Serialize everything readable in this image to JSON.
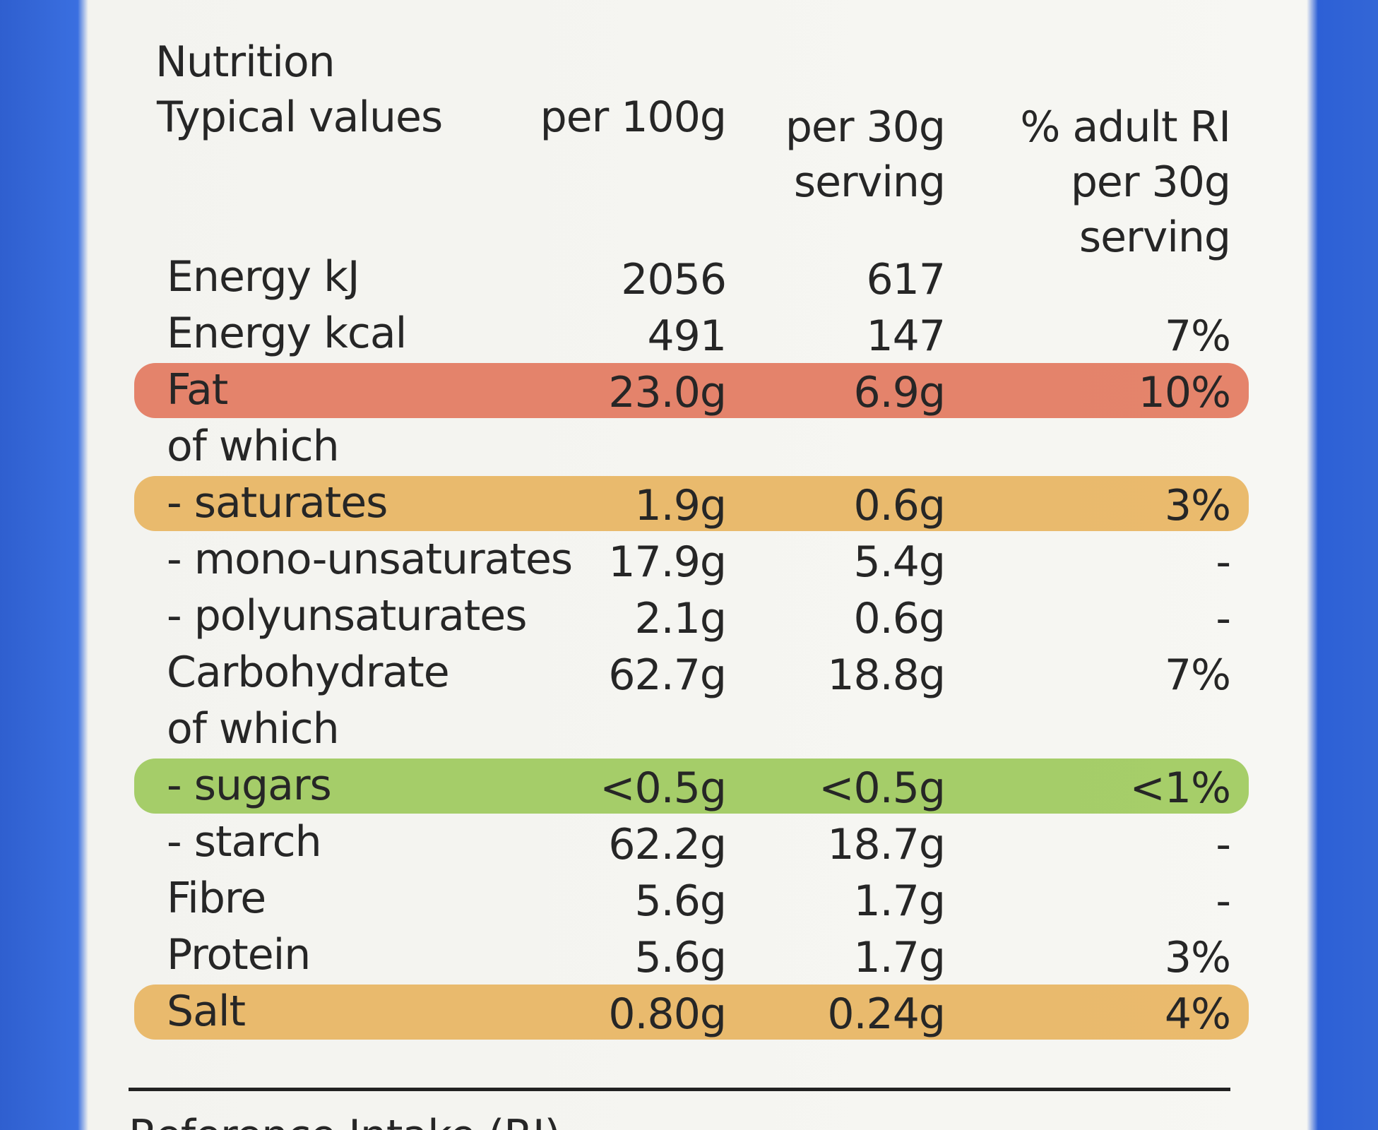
{
  "header": {
    "title": "Nutrition",
    "label": "Typical values",
    "columns": [
      [
        "per 100g"
      ],
      [
        "per 30g",
        "serving"
      ],
      [
        "% adult RI",
        "per 30g",
        "serving"
      ]
    ]
  },
  "table": {
    "rows": [
      {
        "cells": [
          "Energy kJ",
          "2056",
          "617",
          null
        ]
      },
      {
        "cells": [
          "Energy kcal",
          "491",
          "147",
          "7%"
        ]
      },
      {
        "cells": [
          "Fat",
          "23.0g",
          "6.9g",
          "10%"
        ],
        "highlight": "#e2775c"
      },
      {
        "cells": [
          "of which",
          null,
          null,
          null
        ]
      },
      {
        "cells": [
          "- saturates",
          "1.9g",
          "0.6g",
          "3%"
        ],
        "highlight": "#e8b45e"
      },
      {
        "cells": [
          "- mono-unsaturates",
          "17.9g",
          "5.4g",
          "-"
        ]
      },
      {
        "cells": [
          "- polyunsaturates",
          "2.1g",
          "0.6g",
          "-"
        ]
      },
      {
        "cells": [
          "Carbohydrate",
          "62.7g",
          "18.8g",
          "7%"
        ]
      },
      {
        "cells": [
          "of which",
          null,
          null,
          null
        ]
      },
      {
        "cells": [
          "- sugars",
          "<0.5g",
          "<0.5g",
          "<1%"
        ],
        "highlight": "#9cc95a"
      },
      {
        "cells": [
          "- starch",
          "62.2g",
          "18.7g",
          "-"
        ]
      },
      {
        "cells": [
          "Fibre",
          "5.6g",
          "1.7g",
          "-"
        ]
      },
      {
        "cells": [
          "Protein",
          "5.6g",
          "1.7g",
          "3%"
        ]
      },
      {
        "cells": [
          "Salt",
          "0.80g",
          "0.24g",
          "4%"
        ],
        "highlight": "#e8b45e"
      }
    ]
  },
  "footer": {
    "text": "Reference Intake (RI)"
  }
}
